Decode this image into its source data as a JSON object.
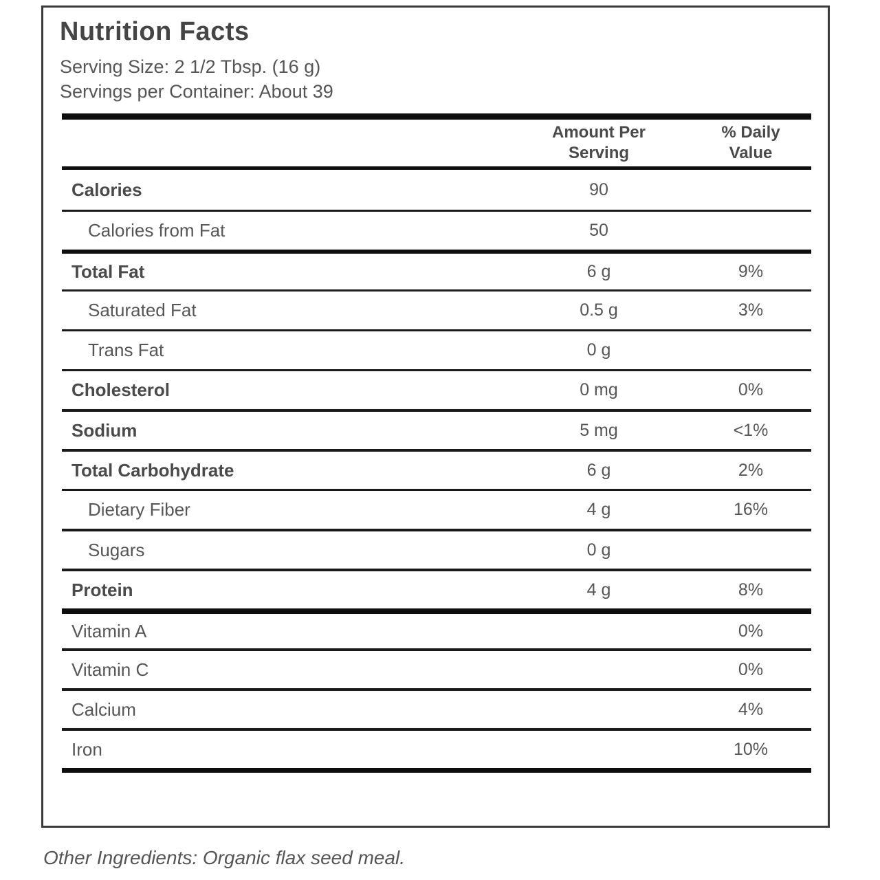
{
  "label": {
    "title": "Nutrition Facts",
    "serving_size": "Serving Size: 2 1/2 Tbsp. (16 g)",
    "servings_per_container": "Servings per Container: About 39",
    "columns": {
      "amount": "Amount Per Serving",
      "daily_value": "% Daily Value"
    },
    "rows": [
      {
        "label": "Calories",
        "amount": "90",
        "dv": "",
        "bold": true,
        "indent": false,
        "divider": "none"
      },
      {
        "label": "Calories from Fat",
        "amount": "50",
        "dv": "",
        "bold": false,
        "indent": true,
        "divider": "thin"
      },
      {
        "label": "Total Fat",
        "amount": "6 g",
        "dv": "9%",
        "bold": true,
        "indent": false,
        "divider": "thick"
      },
      {
        "label": "Saturated Fat",
        "amount": "0.5 g",
        "dv": "3%",
        "bold": false,
        "indent": true,
        "divider": "thin"
      },
      {
        "label": "Trans Fat",
        "amount": "0 g",
        "dv": "",
        "bold": false,
        "indent": true,
        "divider": "thin"
      },
      {
        "label": "Cholesterol",
        "amount": "0 mg",
        "dv": "0%",
        "bold": true,
        "indent": false,
        "divider": "thin"
      },
      {
        "label": "Sodium",
        "amount": "5 mg",
        "dv": "<1%",
        "bold": true,
        "indent": false,
        "divider": "medium"
      },
      {
        "label": "Total Carbohydrate",
        "amount": "6 g",
        "dv": "2%",
        "bold": true,
        "indent": false,
        "divider": "medium"
      },
      {
        "label": "Dietary Fiber",
        "amount": "4 g",
        "dv": "16%",
        "bold": false,
        "indent": true,
        "divider": "thin"
      },
      {
        "label": "Sugars",
        "amount": "0 g",
        "dv": "",
        "bold": false,
        "indent": true,
        "divider": "medium"
      },
      {
        "label": "Protein",
        "amount": "4 g",
        "dv": "8%",
        "bold": true,
        "indent": false,
        "divider": "medium"
      },
      {
        "label": "Vitamin A",
        "amount": "",
        "dv": "0%",
        "bold": false,
        "indent": false,
        "divider": "xthick"
      },
      {
        "label": "Vitamin C",
        "amount": "",
        "dv": "0%",
        "bold": false,
        "indent": false,
        "divider": "medium"
      },
      {
        "label": "Calcium",
        "amount": "",
        "dv": "4%",
        "bold": false,
        "indent": false,
        "divider": "medium"
      },
      {
        "label": "Iron",
        "amount": "",
        "dv": "10%",
        "bold": false,
        "indent": false,
        "divider": "medium"
      }
    ],
    "footer": "Other Ingredients: Organic flax seed meal."
  },
  "colors": {
    "box_border": "#3a3a3a",
    "rule": "#0e0e0e",
    "text_bold": "#4a4a4a",
    "text_regular": "#565656",
    "background": "#ffffff"
  }
}
